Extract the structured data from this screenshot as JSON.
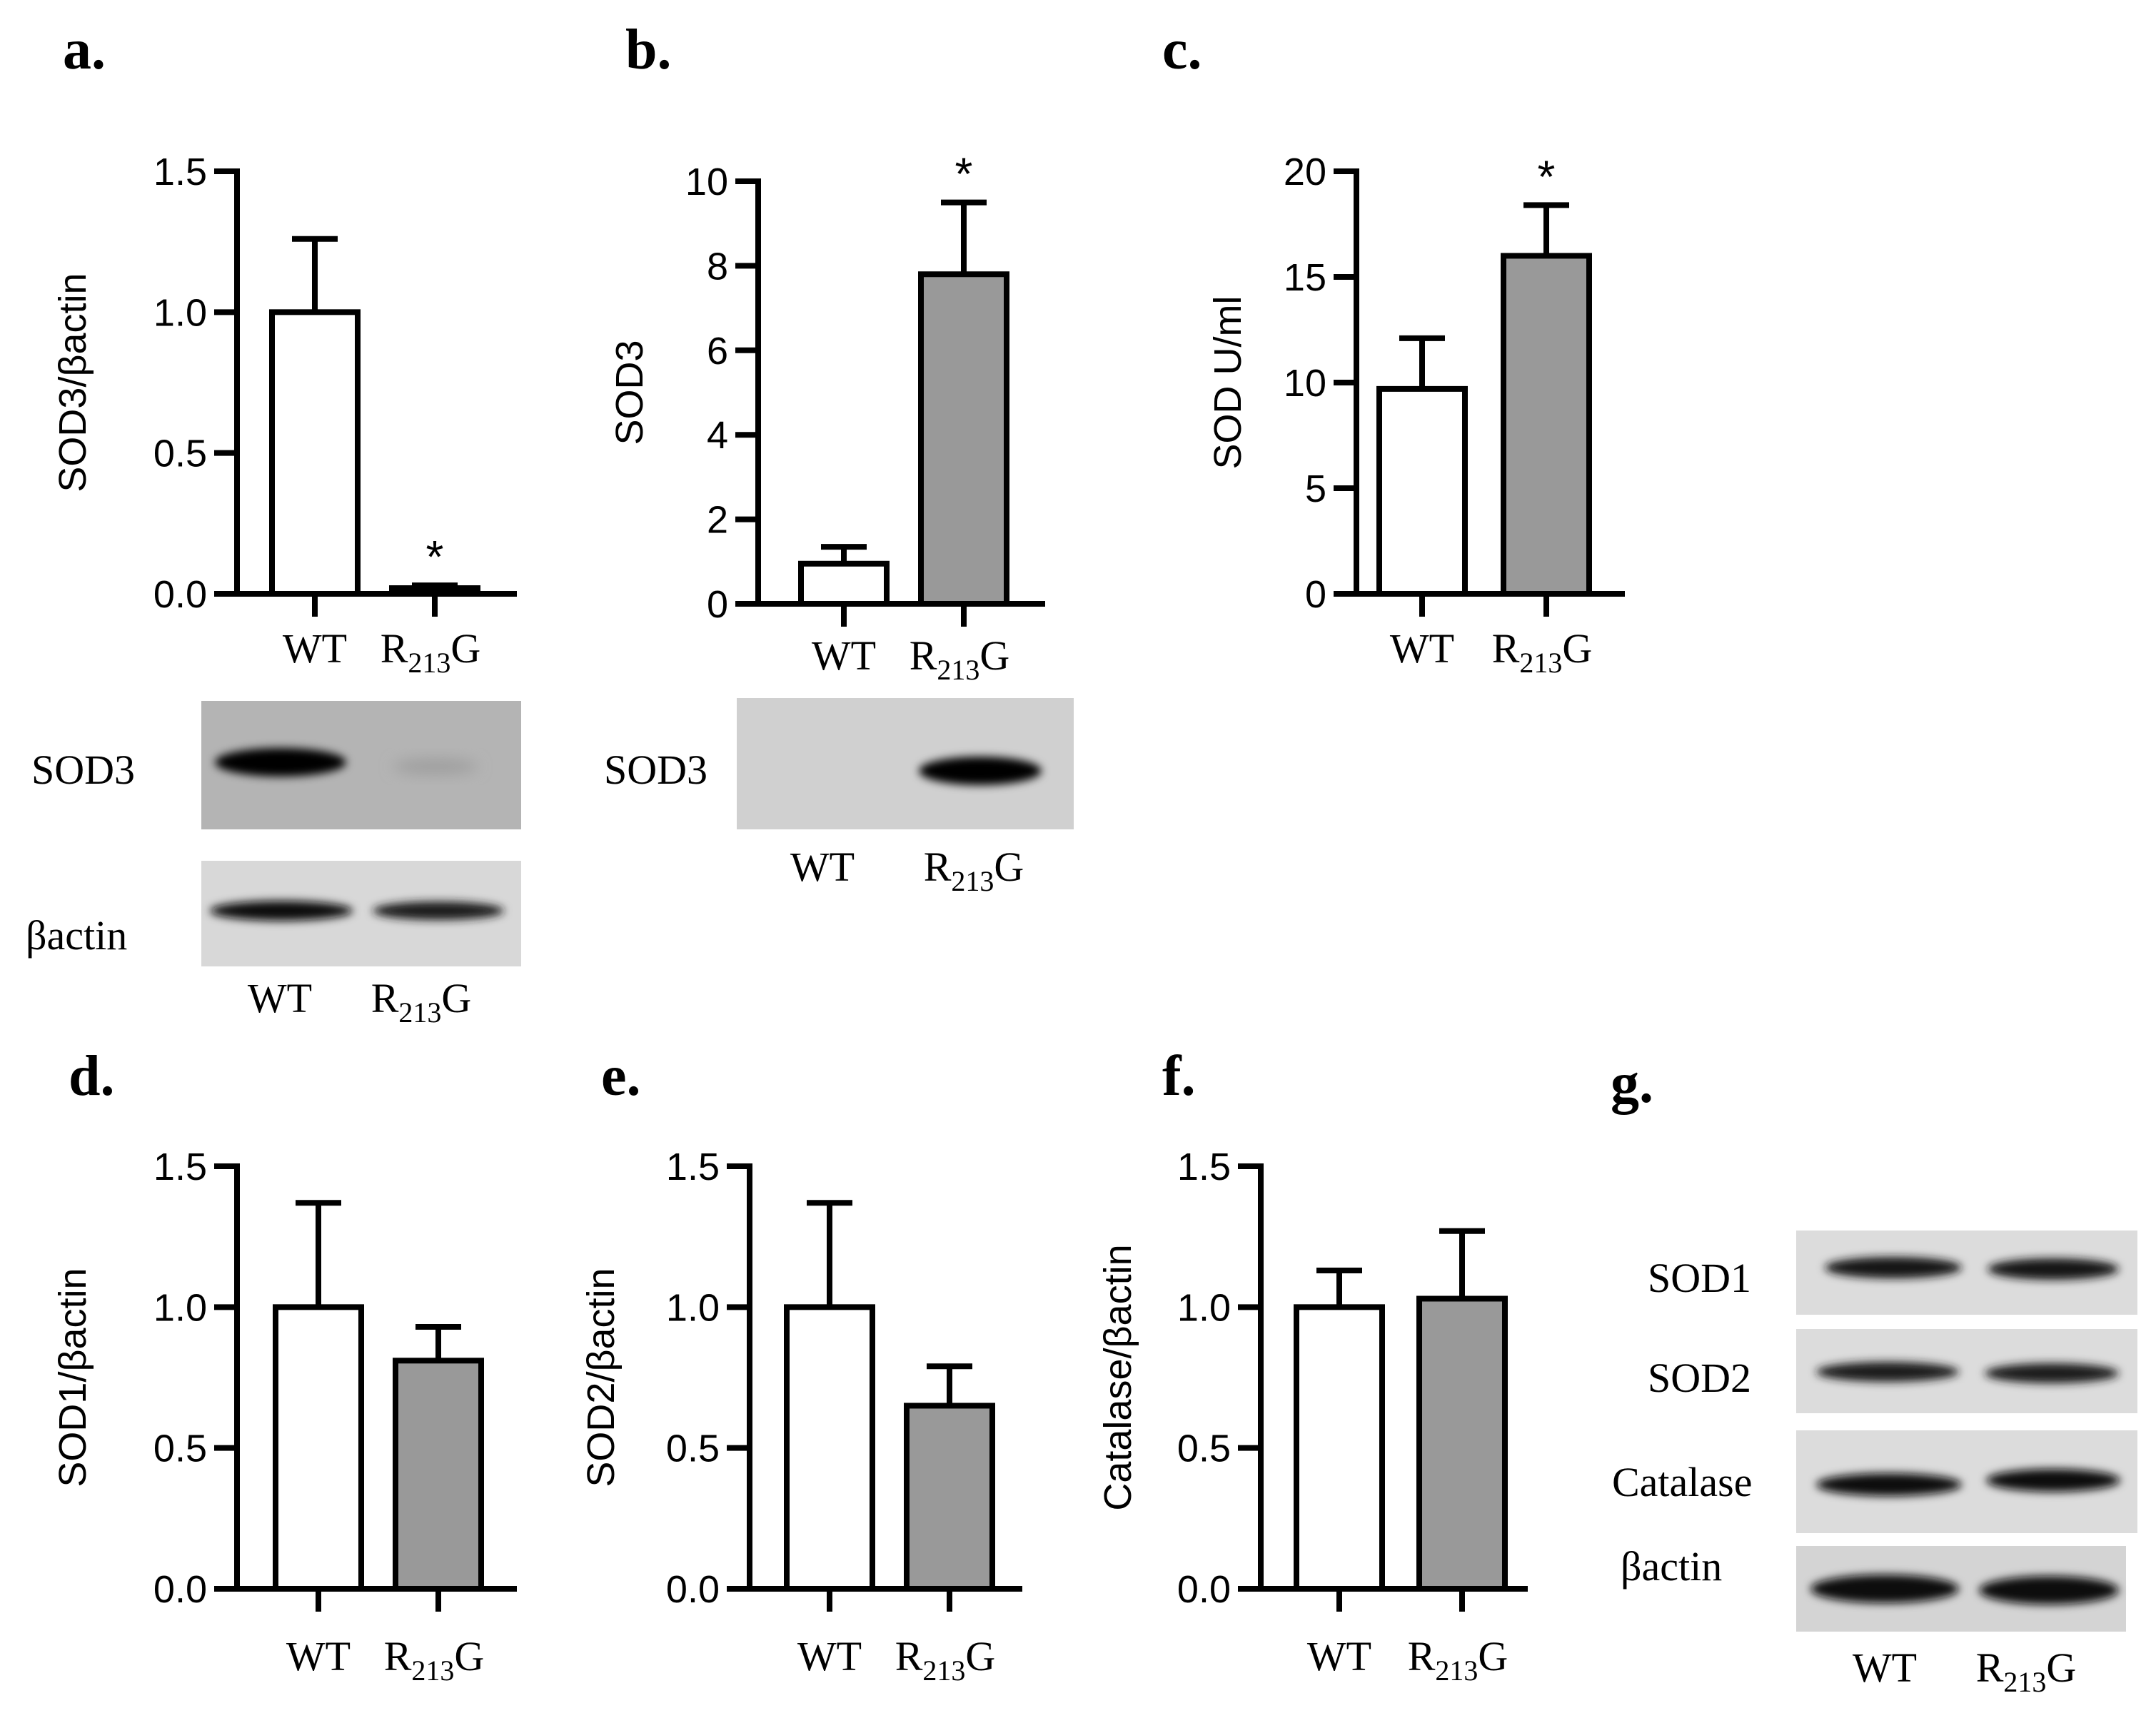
{
  "colors": {
    "wt_fill": "#ffffff",
    "mut_fill": "#999999",
    "ink": "#000000"
  },
  "chart_data": [
    {
      "panel": "a.",
      "type": "bar",
      "categories": [
        "WT",
        "R213G"
      ],
      "values": [
        1.0,
        0.02
      ],
      "errors": [
        0.26,
        0.01
      ],
      "significance": [
        "",
        "*"
      ],
      "ylabel": "SOD3/βactin",
      "ylim": [
        0,
        1.5
      ],
      "yticks": [
        "0.0",
        "0.5",
        "1.0",
        "1.5"
      ],
      "fills": [
        "#ffffff",
        "#ffffff"
      ]
    },
    {
      "panel": "b.",
      "type": "bar",
      "categories": [
        "WT",
        "R213G"
      ],
      "values": [
        0.95,
        7.8
      ],
      "errors": [
        0.4,
        1.7
      ],
      "significance": [
        "",
        "*"
      ],
      "ylabel": "SOD3",
      "ylim": [
        0,
        10
      ],
      "yticks": [
        "0",
        "2",
        "4",
        "6",
        "8",
        "10"
      ],
      "fills": [
        "#ffffff",
        "#999999"
      ]
    },
    {
      "panel": "c.",
      "type": "bar",
      "categories": [
        "WT",
        "R213G"
      ],
      "values": [
        9.7,
        16.0
      ],
      "errors": [
        2.4,
        2.4
      ],
      "significance": [
        "",
        "*"
      ],
      "ylabel": "SOD U/ml",
      "ylim": [
        0,
        20
      ],
      "yticks": [
        "0",
        "5",
        "10",
        "15",
        "20"
      ],
      "fills": [
        "#ffffff",
        "#999999"
      ]
    },
    {
      "panel": "d.",
      "type": "bar",
      "categories": [
        "WT",
        "R213G"
      ],
      "values": [
        1.0,
        0.81
      ],
      "errors": [
        0.37,
        0.12
      ],
      "significance": [
        "",
        ""
      ],
      "ylabel": "SOD1/βactin",
      "ylim": [
        0,
        1.5
      ],
      "yticks": [
        "0.0",
        "0.5",
        "1.0",
        "1.5"
      ],
      "fills": [
        "#ffffff",
        "#999999"
      ]
    },
    {
      "panel": "e.",
      "type": "bar",
      "categories": [
        "WT",
        "R213G"
      ],
      "values": [
        1.0,
        0.65
      ],
      "errors": [
        0.37,
        0.14
      ],
      "significance": [
        "",
        ""
      ],
      "ylabel": "SOD2/βactin",
      "ylim": [
        0,
        1.5
      ],
      "yticks": [
        "0.0",
        "0.5",
        "1.0",
        "1.5"
      ],
      "fills": [
        "#ffffff",
        "#999999"
      ]
    },
    {
      "panel": "f.",
      "type": "bar",
      "categories": [
        "WT",
        "R213G"
      ],
      "values": [
        1.0,
        1.03
      ],
      "errors": [
        0.13,
        0.24
      ],
      "significance": [
        "",
        ""
      ],
      "ylabel": "Catalase/βactin",
      "ylim": [
        0,
        1.5
      ],
      "yticks": [
        "0.0",
        "0.5",
        "1.0",
        "1.5"
      ],
      "fills": [
        "#ffffff",
        "#999999"
      ]
    }
  ],
  "category_labels": {
    "wt": "WT",
    "mut_main": "R",
    "mut_sub": "213",
    "mut_end": "G"
  },
  "blots": {
    "a": {
      "rows": [
        "SOD3",
        "βactin"
      ]
    },
    "b": {
      "rows": [
        "SOD3"
      ]
    },
    "g": {
      "panel": "g.",
      "rows": [
        "SOD1",
        "SOD2",
        "Catalase",
        "βactin"
      ]
    }
  }
}
